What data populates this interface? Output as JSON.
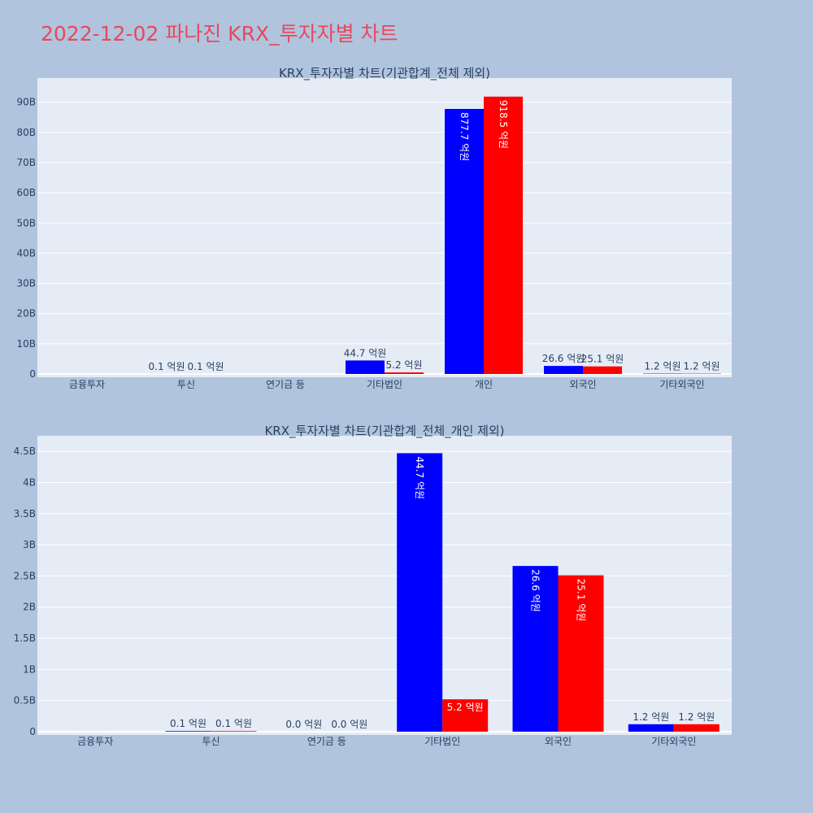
{
  "page_title": "2022-12-02 파나진 KRX_투자자별 차트",
  "colors": {
    "buy": "#0000ff",
    "sell": "#ff0000",
    "plot_bg": "#e5ecf6",
    "page_bg": "#b0c4de",
    "title": "#e8495a"
  },
  "chart_data": [
    {
      "type": "bar",
      "title": "KRX_투자자별 차트(기관합계_전체 제외)",
      "categories": [
        "금융투자",
        "투신",
        "연기금 등",
        "기타법인",
        "개인",
        "외국인",
        "기타외국인"
      ],
      "series": [
        {
          "values": [
            0,
            10000000,
            0,
            4470000000,
            87770000000,
            2660000000,
            120000000
          ],
          "labels": [
            "",
            "0.1 억원",
            "",
            "44.7 억원",
            "877.7 억원",
            "26.6 억원",
            "1.2 억원"
          ]
        },
        {
          "values": [
            0,
            10000000,
            0,
            520000000,
            91850000000,
            2510000000,
            120000000
          ],
          "labels": [
            "",
            "0.1 억원",
            "",
            "5.2 억원",
            "918.5 억원",
            "25.1 억원",
            "1.2 억원"
          ]
        }
      ],
      "ylim": [
        0,
        98000000000
      ],
      "yticks": [
        0,
        10000000000,
        20000000000,
        30000000000,
        40000000000,
        50000000000,
        60000000000,
        70000000000,
        80000000000,
        90000000000
      ],
      "yticklabels": [
        "0",
        "10B",
        "20B",
        "30B",
        "40B",
        "50B",
        "60B",
        "70B",
        "80B",
        "90B"
      ],
      "grid": true,
      "legend": "none"
    },
    {
      "type": "bar",
      "title": "KRX_투자자별 차트(기관합계_전체_개인 제외)",
      "categories": [
        "금융투자",
        "투신",
        "연기금 등",
        "기타법인",
        "외국인",
        "기타외국인"
      ],
      "series": [
        {
          "values": [
            0,
            10000000,
            0,
            4470000000,
            2660000000,
            120000000
          ],
          "labels": [
            "",
            "0.1 억원",
            "0.0 억원",
            "44.7 억원",
            "26.6 억원",
            "1.2 억원"
          ]
        },
        {
          "values": [
            0,
            10000000,
            0,
            520000000,
            2510000000,
            120000000
          ],
          "labels": [
            "",
            "0.1 억원",
            "0.0 억원",
            "5.2 억원",
            "25.1 억원",
            "1.2 억원"
          ]
        }
      ],
      "ylim": [
        0,
        4750000000
      ],
      "yticks": [
        0,
        500000000,
        1000000000,
        1500000000,
        2000000000,
        2500000000,
        3000000000,
        3500000000,
        4000000000,
        4500000000
      ],
      "yticklabels": [
        "0",
        "0.5B",
        "1B",
        "1.5B",
        "2B",
        "2.5B",
        "3B",
        "3.5B",
        "4B",
        "4.5B"
      ],
      "grid": true,
      "legend": "none"
    }
  ]
}
